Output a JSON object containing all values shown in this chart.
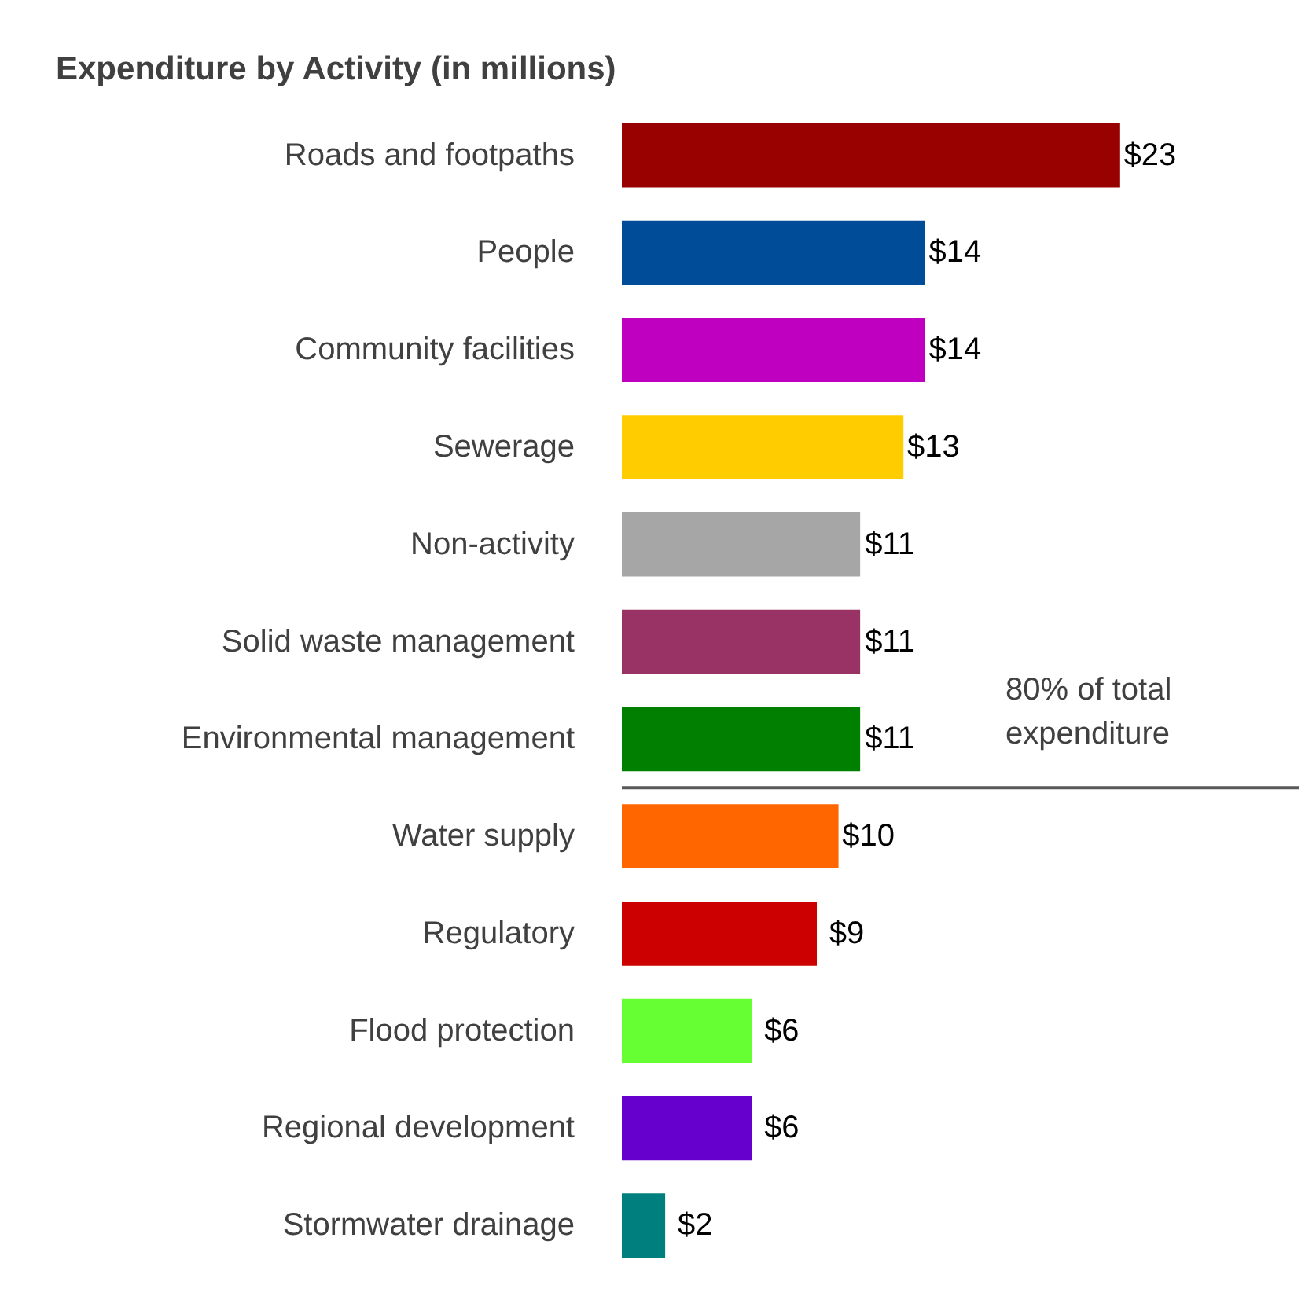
{
  "chart_data": {
    "type": "bar",
    "orientation": "horizontal",
    "title": "Expenditure by Activity (in millions)",
    "categories": [
      "Roads and footpaths",
      "People",
      "Community facilities",
      "Sewerage",
      "Non-activity",
      "Solid waste management",
      "Environmental management",
      "Water supply",
      "Regulatory",
      "Flood protection",
      "Regional development",
      "Stormwater drainage"
    ],
    "values": [
      23,
      14,
      14,
      13,
      11,
      11,
      11,
      10,
      9,
      6,
      6,
      2
    ],
    "value_labels": [
      "$23",
      "$14",
      "$14",
      "$13",
      "$11",
      "$11",
      "$11",
      "$10",
      "$9",
      "$6",
      "$6",
      "$2"
    ],
    "colors": [
      "#990000",
      "#004c99",
      "#c000c0",
      "#ffcc00",
      "#a6a6a6",
      "#993366",
      "#007f00",
      "#ff6600",
      "#cc0000",
      "#66ff33",
      "#6600cc",
      "#007f7f"
    ],
    "annotations": [
      "80% of total expenditure"
    ],
    "grid": false,
    "legend": false
  }
}
